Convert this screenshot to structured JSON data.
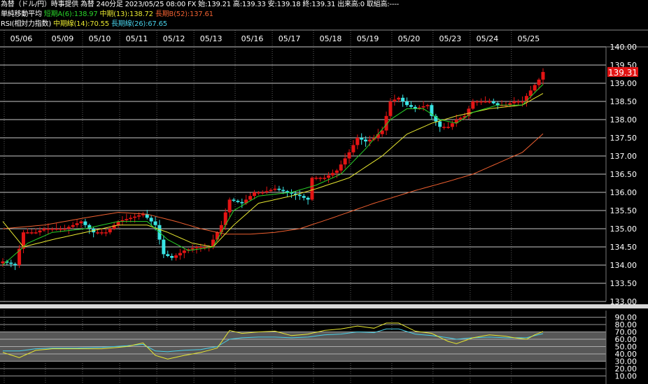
{
  "header": {
    "line1": "為替（ドル/円）時事提供 為替 240分足 2023/05/25 08:00 FX 始:139.21 高:139.33 安:139.18 終:139.31 出来高:0 取組高:----",
    "ma_title": "単純移動平均",
    "ma_short": "短期A(6):138.97",
    "ma_mid": "中期(13):138.72",
    "ma_long": "長期B(52):137.61",
    "rsi_title": "RSI(相対力指数)",
    "rsi_mid": "中期線(14):70.55",
    "rsi_long": "長期線(26):67.65"
  },
  "colors": {
    "up": "#e31414",
    "down": "#39e4e4",
    "ma_short": "#29d329",
    "ma_mid": "#e8e830",
    "ma_long": "#f06030",
    "rsi_mid": "#e8e830",
    "rsi_long": "#48d0e8",
    "last_price_bg": "#e31414"
  },
  "chart_data": [
    {
      "type": "candlestick",
      "title": "為替（ドル/円）",
      "categories": [
        "05/06",
        "05/09",
        "05/10",
        "05/11",
        "05/12",
        "05/13",
        "05/16",
        "05/17",
        "05/18",
        "05/19",
        "05/20",
        "05/23",
        "05/24",
        "05/25"
      ],
      "yticks": [
        "140.00",
        "139.50",
        "139.00",
        "138.50",
        "138.00",
        "137.50",
        "137.00",
        "136.50",
        "136.00",
        "135.50",
        "135.00",
        "134.50",
        "134.00",
        "133.50",
        "133.00"
      ],
      "ylim": [
        133.0,
        140.0
      ],
      "last_price": "139.31",
      "anchors": {
        "close": [
          [
            0,
            134.1
          ],
          [
            3,
            134.0
          ],
          [
            5,
            134.9
          ],
          [
            8,
            134.9
          ],
          [
            10,
            135.0
          ],
          [
            12,
            135.0
          ],
          [
            15,
            135.0
          ],
          [
            19,
            135.2
          ],
          [
            22,
            134.9
          ],
          [
            25,
            134.9
          ],
          [
            28,
            135.2
          ],
          [
            31,
            135.3
          ],
          [
            34,
            135.4
          ],
          [
            37,
            135.1
          ],
          [
            39,
            134.3
          ],
          [
            41,
            134.2
          ],
          [
            44,
            134.4
          ],
          [
            47,
            134.5
          ],
          [
            50,
            134.5
          ],
          [
            53,
            135.1
          ],
          [
            55,
            135.8
          ],
          [
            58,
            135.7
          ],
          [
            61,
            136.0
          ],
          [
            63,
            136.0
          ],
          [
            66,
            136.1
          ],
          [
            69,
            136.0
          ],
          [
            72,
            135.9
          ],
          [
            74,
            135.8
          ],
          [
            75,
            136.4
          ],
          [
            78,
            136.4
          ],
          [
            81,
            136.6
          ],
          [
            84,
            137.1
          ],
          [
            86,
            137.5
          ],
          [
            88,
            137.4
          ],
          [
            90,
            137.5
          ],
          [
            92,
            137.7
          ],
          [
            94,
            138.5
          ],
          [
            96,
            138.6
          ],
          [
            98,
            138.4
          ],
          [
            100,
            138.3
          ],
          [
            103,
            138.4
          ],
          [
            104,
            138.1
          ],
          [
            106,
            137.8
          ],
          [
            108,
            137.8
          ],
          [
            110,
            138.0
          ],
          [
            112,
            138.1
          ],
          [
            114,
            138.5
          ],
          [
            116,
            138.5
          ],
          [
            118,
            138.5
          ],
          [
            120,
            138.4
          ],
          [
            122,
            138.4
          ],
          [
            124,
            138.5
          ],
          [
            126,
            138.5
          ],
          [
            128,
            138.8
          ],
          [
            130,
            139.1
          ],
          [
            131,
            139.31
          ]
        ],
        "ma_short": [
          [
            0,
            134.0
          ],
          [
            6,
            134.6
          ],
          [
            12,
            134.9
          ],
          [
            20,
            135.0
          ],
          [
            28,
            135.2
          ],
          [
            35,
            135.2
          ],
          [
            40,
            134.7
          ],
          [
            45,
            134.4
          ],
          [
            51,
            134.5
          ],
          [
            56,
            135.5
          ],
          [
            62,
            135.9
          ],
          [
            70,
            136.0
          ],
          [
            76,
            136.2
          ],
          [
            82,
            136.5
          ],
          [
            88,
            137.2
          ],
          [
            94,
            138.0
          ],
          [
            98,
            138.3
          ],
          [
            102,
            138.3
          ],
          [
            106,
            138.0
          ],
          [
            110,
            137.9
          ],
          [
            114,
            138.2
          ],
          [
            120,
            138.4
          ],
          [
            126,
            138.4
          ],
          [
            131,
            138.97
          ]
        ],
        "ma_mid": [
          [
            0,
            135.2
          ],
          [
            5,
            134.5
          ],
          [
            12,
            134.7
          ],
          [
            20,
            134.9
          ],
          [
            28,
            135.1
          ],
          [
            35,
            135.1
          ],
          [
            40,
            134.9
          ],
          [
            46,
            134.6
          ],
          [
            51,
            134.5
          ],
          [
            56,
            135.1
          ],
          [
            62,
            135.7
          ],
          [
            70,
            135.9
          ],
          [
            76,
            136.1
          ],
          [
            84,
            136.4
          ],
          [
            92,
            137.0
          ],
          [
            98,
            137.6
          ],
          [
            104,
            137.9
          ],
          [
            110,
            138.1
          ],
          [
            118,
            138.3
          ],
          [
            126,
            138.4
          ],
          [
            131,
            138.72
          ]
        ],
        "ma_long": [
          [
            0,
            135.0
          ],
          [
            10,
            135.1
          ],
          [
            20,
            135.3
          ],
          [
            28,
            135.45
          ],
          [
            35,
            135.4
          ],
          [
            42,
            135.2
          ],
          [
            48,
            135.0
          ],
          [
            54,
            134.85
          ],
          [
            60,
            134.85
          ],
          [
            66,
            134.9
          ],
          [
            72,
            135.0
          ],
          [
            80,
            135.3
          ],
          [
            90,
            135.7
          ],
          [
            100,
            136.05
          ],
          [
            108,
            136.3
          ],
          [
            114,
            136.5
          ],
          [
            120,
            136.8
          ],
          [
            126,
            137.1
          ],
          [
            131,
            137.61
          ]
        ]
      }
    },
    {
      "type": "line",
      "title": "RSI(相対力指数)",
      "yticks": [
        "90.00",
        "80.00",
        "70.00",
        "60.00",
        "50.00",
        "40.00",
        "30.00",
        "20.00",
        "10.00"
      ],
      "ylim": [
        0,
        100
      ],
      "series": [
        {
          "name": "中期線(14)",
          "anchors": [
            [
              0,
              42
            ],
            [
              4,
              35
            ],
            [
              8,
              45
            ],
            [
              12,
              47
            ],
            [
              18,
              47
            ],
            [
              24,
              47
            ],
            [
              30,
              50
            ],
            [
              34,
              55
            ],
            [
              37,
              38
            ],
            [
              40,
              33
            ],
            [
              44,
              38
            ],
            [
              48,
              42
            ],
            [
              52,
              48
            ],
            [
              55,
              72
            ],
            [
              58,
              68
            ],
            [
              62,
              70
            ],
            [
              66,
              71
            ],
            [
              70,
              65
            ],
            [
              74,
              67
            ],
            [
              78,
              72
            ],
            [
              82,
              74
            ],
            [
              86,
              78
            ],
            [
              90,
              75
            ],
            [
              93,
              82
            ],
            [
              96,
              82
            ],
            [
              100,
              71
            ],
            [
              104,
              68
            ],
            [
              108,
              57
            ],
            [
              110,
              54
            ],
            [
              114,
              62
            ],
            [
              118,
              66
            ],
            [
              122,
              64
            ],
            [
              124,
              62
            ],
            [
              127,
              60
            ],
            [
              129,
              66
            ],
            [
              131,
              70.55
            ]
          ]
        },
        {
          "name": "長期線(26)",
          "anchors": [
            [
              0,
              44
            ],
            [
              4,
              44
            ],
            [
              8,
              47
            ],
            [
              12,
              48
            ],
            [
              18,
              48
            ],
            [
              24,
              49
            ],
            [
              30,
              51
            ],
            [
              34,
              53
            ],
            [
              37,
              44
            ],
            [
              40,
              43
            ],
            [
              44,
              45
            ],
            [
              48,
              46
            ],
            [
              52,
              50
            ],
            [
              55,
              60
            ],
            [
              58,
              62
            ],
            [
              62,
              63
            ],
            [
              66,
              63
            ],
            [
              70,
              62
            ],
            [
              74,
              63
            ],
            [
              78,
              66
            ],
            [
              82,
              67
            ],
            [
              86,
              70
            ],
            [
              90,
              69
            ],
            [
              93,
              74
            ],
            [
              96,
              74
            ],
            [
              100,
              67
            ],
            [
              104,
              65
            ],
            [
              108,
              62
            ],
            [
              110,
              60
            ],
            [
              114,
              62
            ],
            [
              118,
              63
            ],
            [
              122,
              62
            ],
            [
              124,
              62
            ],
            [
              127,
              62
            ],
            [
              129,
              65
            ],
            [
              131,
              67.65
            ]
          ]
        }
      ]
    }
  ]
}
